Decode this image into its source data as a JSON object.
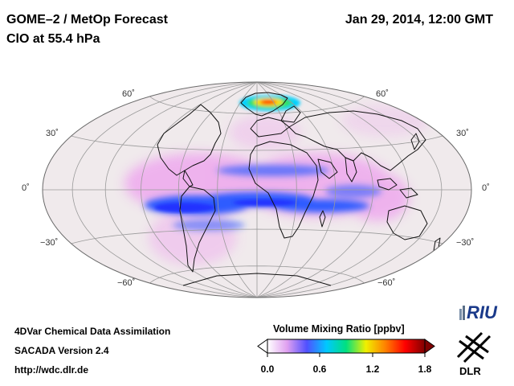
{
  "header": {
    "title_line1": "GOME–2 / MetOp Forecast",
    "title_line2": "ClO at 55.4 hPa",
    "date": "Jan 29, 2014, 12:00 GMT"
  },
  "map": {
    "projection": "Hammer-Aitoff (global)",
    "latitude_labels": [
      "60˚",
      "30˚",
      "0˚",
      "−30˚",
      "−60˚"
    ],
    "colors": {
      "background": "#f0eaec",
      "grid": "#9a9a9a",
      "coast": "#111111",
      "pink": "#eea8ee",
      "blue": "#2f5bff",
      "dark_blue": "#2030ff"
    }
  },
  "colorbar": {
    "title": "Volume Mixing Ratio [ppbv]",
    "ticks": [
      "0.0",
      "0.6",
      "1.2",
      "1.8"
    ],
    "colors": [
      "#ffffff",
      "#e0a0f0",
      "#5050ff",
      "#00c8ff",
      "#00e080",
      "#f0f000",
      "#ff8000",
      "#ff0000",
      "#800000"
    ]
  },
  "footer": {
    "line1": "4DVar Chemical Data Assimilation",
    "line2": "SACADA Version 2.4",
    "line3": "http://wdc.dlr.de"
  },
  "logos": {
    "riu": "RIU",
    "dlr": "DLR"
  }
}
